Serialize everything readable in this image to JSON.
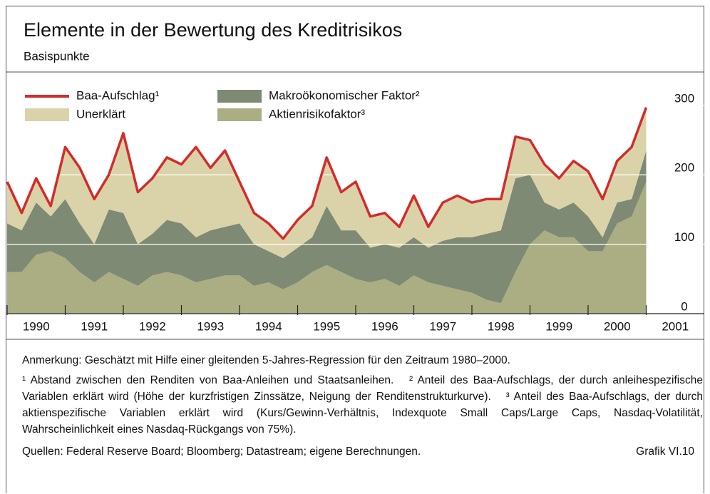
{
  "chart_data": {
    "type": "area",
    "stacked": true,
    "grid": true,
    "title": "Elemente in der Bewertung des Kreditrisikos",
    "subtitle": "Basispunkte",
    "x": [
      1990,
      1990.25,
      1990.5,
      1990.75,
      1991,
      1991.25,
      1991.5,
      1991.75,
      1992,
      1992.25,
      1992.5,
      1992.75,
      1993,
      1993.25,
      1993.5,
      1993.75,
      1994,
      1994.25,
      1994.5,
      1994.75,
      1995,
      1995.25,
      1995.5,
      1995.75,
      1996,
      1996.25,
      1996.5,
      1996.75,
      1997,
      1997.25,
      1997.5,
      1997.75,
      1998,
      1998.25,
      1998.5,
      1998.75,
      1999,
      1999.25,
      1999.5,
      1999.75,
      2000,
      2000.25,
      2000.5,
      2000.75,
      2001
    ],
    "xlim": [
      1990,
      2002
    ],
    "xticks": [
      1990,
      1991,
      1992,
      1993,
      1994,
      1995,
      1996,
      1997,
      1998,
      1999,
      2000,
      2001
    ],
    "ylim": [
      0,
      345
    ],
    "yticks": [
      0,
      100,
      200,
      300
    ],
    "series": [
      {
        "name": "Baa-Aufschlag¹",
        "type": "line",
        "color": "#d32b2b",
        "values": [
          190,
          145,
          195,
          155,
          240,
          210,
          165,
          200,
          260,
          175,
          195,
          225,
          215,
          240,
          210,
          235,
          190,
          145,
          130,
          108,
          135,
          155,
          225,
          175,
          190,
          140,
          145,
          125,
          170,
          125,
          160,
          170,
          160,
          165,
          165,
          255,
          250,
          215,
          195,
          220,
          205,
          165,
          220,
          240,
          297
        ]
      },
      {
        "name": "Unerklärt",
        "color": "#dad3a9",
        "values": [
          60,
          25,
          35,
          15,
          75,
          80,
          65,
          50,
          115,
          75,
          80,
          90,
          85,
          130,
          90,
          110,
          60,
          45,
          40,
          28,
          40,
          45,
          70,
          55,
          70,
          45,
          45,
          30,
          60,
          30,
          55,
          60,
          50,
          50,
          45,
          60,
          50,
          55,
          45,
          60,
          65,
          55,
          60,
          75,
          62
        ]
      },
      {
        "name": "Makroökonomischer Faktor²",
        "color": "#7f8a74",
        "values": [
          70,
          60,
          75,
          50,
          85,
          70,
          55,
          90,
          95,
          60,
          60,
          75,
          75,
          65,
          70,
          70,
          75,
          60,
          45,
          45,
          50,
          50,
          85,
          60,
          70,
          50,
          50,
          55,
          55,
          50,
          65,
          75,
          80,
          95,
          105,
          135,
          100,
          40,
          40,
          50,
          50,
          20,
          30,
          25,
          45
        ]
      },
      {
        "name": "Aktienrisikofaktor³",
        "color": "#aaae82",
        "values": [
          60,
          60,
          85,
          90,
          80,
          60,
          45,
          60,
          50,
          40,
          55,
          60,
          55,
          45,
          50,
          55,
          55,
          40,
          45,
          35,
          45,
          60,
          70,
          60,
          50,
          45,
          50,
          40,
          55,
          45,
          40,
          35,
          30,
          20,
          15,
          60,
          100,
          120,
          110,
          110,
          90,
          90,
          130,
          140,
          190
        ]
      }
    ]
  },
  "notes": {
    "remark": "Anmerkung: Geschätzt mit Hilfe einer gleitenden 5-Jahres-Regression für den Zeitraum 1980–2000.",
    "footnotes": [
      "¹ Abstand zwischen den Renditen von Baa-Anleihen und Staatsanleihen.",
      "² Anteil des Baa-Aufschlags, der durch anleihespezifische Variablen erklärt wird (Höhe der kurzfristigen Zinssätze, Neigung der Renditenstrukturkurve).",
      "³ Anteil des Baa-Aufschlags, der durch aktienspezifische Variablen erklärt wird (Kurs/Gewinn-Verhältnis, Indexquote Small Caps/Large Caps, Nasdaq-Volatilität, Wahrscheinlichkeit eines Nasdaq-Rückgangs von 75%)."
    ],
    "source": "Quellen: Federal Reserve Board; Bloomberg; Datastream; eigene Berechnungen.",
    "figure": "Grafik VI.10"
  }
}
